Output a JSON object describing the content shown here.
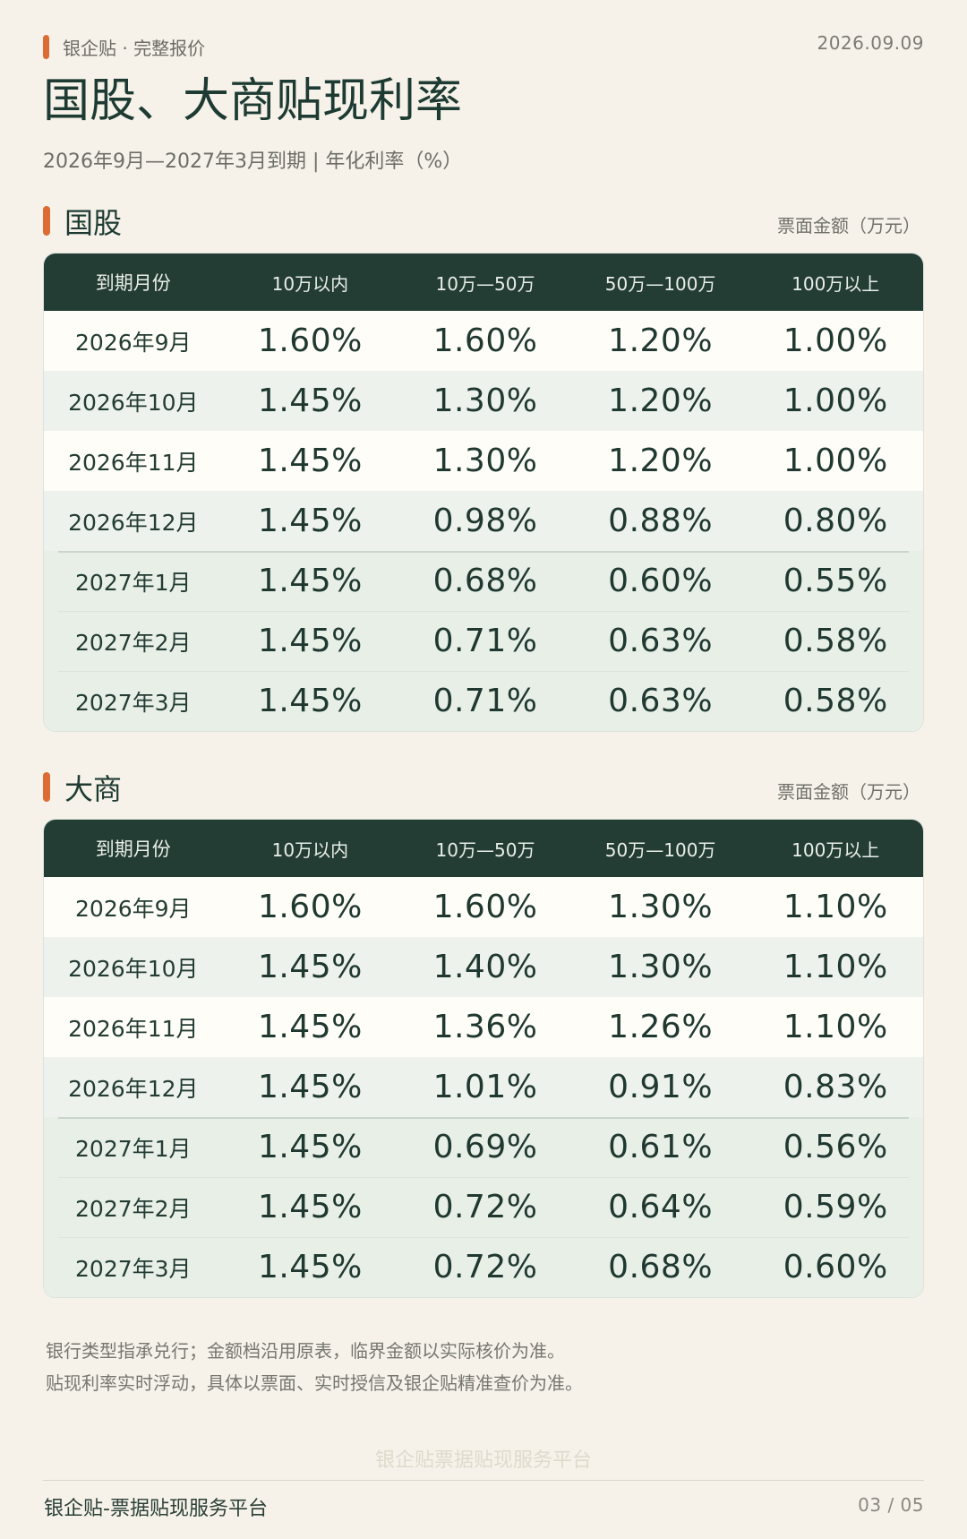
{
  "header": {
    "breadcrumb": "银企贴 · 完整报价",
    "date": "2026.09.09",
    "title": "国股、大商贴现利率",
    "subtitle": "2026年9月—2027年3月到期 | 年化利率（%）"
  },
  "columns": [
    "到期月份",
    "10万以内",
    "10万—50万",
    "50万—100万",
    "100万以上"
  ],
  "sections": [
    {
      "title": "国股",
      "unit": "票面金额（万元）",
      "rows": [
        [
          "2026年9月",
          "1.60%",
          "1.60%",
          "1.20%",
          "1.00%"
        ],
        [
          "2026年10月",
          "1.45%",
          "1.30%",
          "1.20%",
          "1.00%"
        ],
        [
          "2026年11月",
          "1.45%",
          "1.30%",
          "1.20%",
          "1.00%"
        ],
        [
          "2026年12月",
          "1.45%",
          "0.98%",
          "0.88%",
          "0.80%"
        ],
        [
          "2027年1月",
          "1.45%",
          "0.68%",
          "0.60%",
          "0.55%"
        ],
        [
          "2027年2月",
          "1.45%",
          "0.71%",
          "0.63%",
          "0.58%"
        ],
        [
          "2027年3月",
          "1.45%",
          "0.71%",
          "0.63%",
          "0.58%"
        ]
      ]
    },
    {
      "title": "大商",
      "unit": "票面金额（万元）",
      "rows": [
        [
          "2026年9月",
          "1.60%",
          "1.60%",
          "1.30%",
          "1.10%"
        ],
        [
          "2026年10月",
          "1.45%",
          "1.40%",
          "1.30%",
          "1.10%"
        ],
        [
          "2026年11月",
          "1.45%",
          "1.36%",
          "1.26%",
          "1.10%"
        ],
        [
          "2026年12月",
          "1.45%",
          "1.01%",
          "0.91%",
          "0.83%"
        ],
        [
          "2027年1月",
          "1.45%",
          "0.69%",
          "0.61%",
          "0.56%"
        ],
        [
          "2027年2月",
          "1.45%",
          "0.72%",
          "0.64%",
          "0.59%"
        ],
        [
          "2027年3月",
          "1.45%",
          "0.72%",
          "0.68%",
          "0.60%"
        ]
      ]
    }
  ],
  "notes": [
    "银行类型指承兑行；金额档沿用原表，临界金额以实际核价为准。",
    "贴现利率实时浮动，具体以票面、实时授信及银企贴精准查价为准。"
  ],
  "watermark": "银企贴票据贴现服务平台",
  "footer": {
    "brand": "银企贴-票据贴现服务平台",
    "page": "03 / 05"
  },
  "colors": {
    "accent": "#dc6c34",
    "header_bg": "#243d34",
    "page_bg": "#f6f2e9"
  }
}
